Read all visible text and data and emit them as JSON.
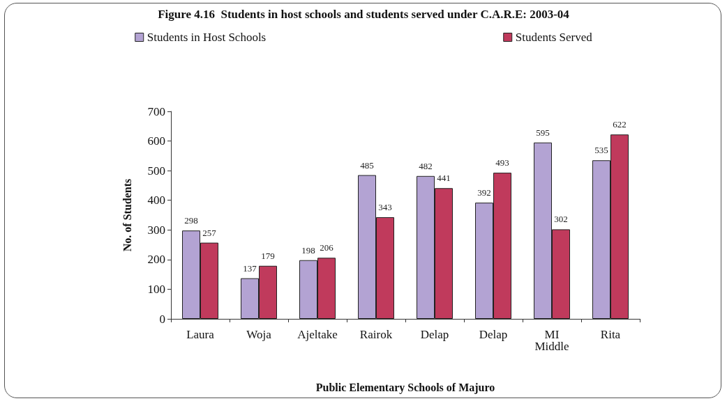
{
  "chart_data": {
    "type": "bar",
    "title": "Figure 4.16  Students in host schools and students served under C.A.R.E: 2003-04",
    "xlabel": "Public Elementary Schools of Majuro",
    "ylabel": "No. of Students",
    "categories": [
      "Laura",
      "Woja",
      "Ajeltake",
      "Rairok",
      "Delap",
      "Delap",
      "MI Middle",
      "Rita"
    ],
    "series": [
      {
        "name": "Students in Host Schools",
        "color": "#b3a3d3",
        "values": [
          298,
          137,
          198,
          485,
          482,
          392,
          595,
          535
        ]
      },
      {
        "name": "Students Served",
        "color": "#c03a5c",
        "values": [
          257,
          179,
          206,
          343,
          441,
          493,
          302,
          622
        ]
      }
    ],
    "ylim": [
      0,
      700
    ],
    "yticks": [
      0,
      100,
      200,
      300,
      400,
      500,
      600,
      700
    ],
    "grid": false,
    "legend": "top",
    "data_labels": true
  }
}
